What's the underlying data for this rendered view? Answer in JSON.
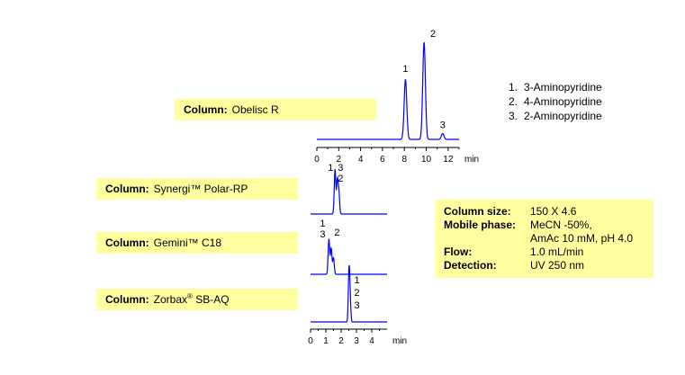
{
  "column_prefix": "Column:",
  "columns": [
    {
      "name": "Obelisc R",
      "mark": ""
    },
    {
      "name": "Synergi",
      "mark": "™",
      "suffix": " Polar-RP"
    },
    {
      "name": "Gemini",
      "mark": "™",
      "suffix": " C18"
    },
    {
      "name": "Zorbax",
      "mark": "®",
      "suffix": " SB-AQ"
    }
  ],
  "legend": [
    {
      "num": "1.",
      "name": "3-Aminopyridine"
    },
    {
      "num": "2.",
      "name": "4-Aminopyridine"
    },
    {
      "num": "3.",
      "name": "2-Aminopyridine"
    }
  ],
  "conditions": [
    {
      "key": "Column size:",
      "value": "150 X 4.6"
    },
    {
      "key": "Mobile phase:",
      "value": "MeCN -50%,"
    },
    {
      "key": "",
      "value": "AmAc 10 mM, pH 4.0"
    },
    {
      "key": "Flow:",
      "value": "1.0 mL/min"
    },
    {
      "key": "Detection:",
      "value": "UV 250 nm"
    }
  ],
  "colors": {
    "trace": "#0000ff",
    "label_bg": "#ffffa0"
  },
  "chart_data": [
    {
      "type": "line",
      "title": "Obelisc R",
      "xlabel": "min",
      "xlim": [
        0,
        13
      ],
      "xticks": [
        0,
        2,
        4,
        6,
        8,
        10,
        12
      ],
      "peaks": [
        {
          "label": "1",
          "rt": 8.1,
          "height": 0.62
        },
        {
          "label": "2",
          "rt": 9.8,
          "height": 1.0
        },
        {
          "label": "3",
          "rt": 11.5,
          "height": 0.06
        }
      ]
    },
    {
      "type": "line",
      "title": "Synergi™ Polar-RP",
      "xlabel": "",
      "xlim": [
        0,
        5
      ],
      "peaks": [
        {
          "label": "1",
          "rt": 1.6,
          "height": 0.95
        },
        {
          "label": "3",
          "rt": 1.75,
          "height": 0.7
        },
        {
          "label": "2",
          "rt": 1.85,
          "height": 0.45
        }
      ],
      "peak_labels": [
        {
          "text": "1",
          "dx": -8,
          "dy": 0
        },
        {
          "text": "3",
          "dx": 3,
          "dy": 0
        },
        {
          "text": "2",
          "dx": 3,
          "dy": 12
        }
      ]
    },
    {
      "type": "line",
      "title": "Gemini™ C18",
      "xlabel": "",
      "xlim": [
        0,
        5
      ],
      "peaks": [
        {
          "label": "1",
          "rt": 1.2,
          "height": 0.75
        },
        {
          "label": "3",
          "rt": 1.35,
          "height": 0.55
        },
        {
          "label": "2",
          "rt": 1.5,
          "height": 0.35
        }
      ],
      "peak_labels": [
        {
          "text": "1",
          "dx": -10,
          "dy": 0
        },
        {
          "text": "3",
          "dx": -10,
          "dy": 12
        },
        {
          "text": "2",
          "dx": 6,
          "dy": 10
        }
      ]
    },
    {
      "type": "line",
      "title": "Zorbax® SB-AQ",
      "xlabel": "min",
      "xlim": [
        0,
        5
      ],
      "xticks": [
        0,
        1,
        2,
        3,
        4
      ],
      "peaks": [
        {
          "label": "1",
          "rt": 2.5,
          "height": 0.85
        },
        {
          "label": "2",
          "rt": 2.55,
          "height": 0.55
        },
        {
          "label": "3",
          "rt": 2.6,
          "height": 0.35
        }
      ],
      "peak_labels": [
        {
          "text": "1",
          "dx": 6,
          "dy": 0
        },
        {
          "text": "2",
          "dx": 6,
          "dy": 14
        },
        {
          "text": "3",
          "dx": 6,
          "dy": 28
        }
      ]
    }
  ]
}
